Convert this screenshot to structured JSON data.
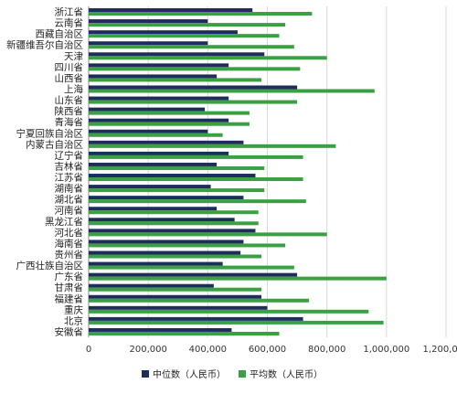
{
  "chart_data": {
    "type": "bar",
    "orientation": "horizontal",
    "categories": [
      "浙江省",
      "云南省",
      "西藏自治区",
      "新疆维吾尔自治区",
      "天津",
      "四川省",
      "山西省",
      "上海",
      "山东省",
      "陕西省",
      "青海省",
      "宁夏回族自治区",
      "内蒙古自治区",
      "辽宁省",
      "吉林省",
      "江苏省",
      "湖南省",
      "湖北省",
      "河南省",
      "黑龙江省",
      "河北省",
      "海南省",
      "贵州省",
      "广西壮族自治区",
      "广东省",
      "甘肃省",
      "福建省",
      "重庆",
      "北京",
      "安徽省"
    ],
    "series": [
      {
        "name": "中位数（人民币）",
        "color": "#1f2d5c",
        "values": [
          550000,
          400000,
          500000,
          400000,
          590000,
          470000,
          430000,
          700000,
          470000,
          390000,
          470000,
          400000,
          520000,
          470000,
          430000,
          560000,
          410000,
          520000,
          430000,
          490000,
          560000,
          520000,
          510000,
          450000,
          700000,
          420000,
          580000,
          600000,
          720000,
          480000
        ]
      },
      {
        "name": "平均数（人民币）",
        "color": "#3aa043",
        "values": [
          750000,
          660000,
          640000,
          690000,
          800000,
          710000,
          580000,
          960000,
          700000,
          540000,
          540000,
          450000,
          830000,
          720000,
          590000,
          720000,
          590000,
          730000,
          570000,
          570000,
          800000,
          660000,
          580000,
          690000,
          1000000,
          580000,
          740000,
          940000,
          990000,
          640000
        ]
      }
    ],
    "x_ticks": [
      "0",
      "200,000",
      "400,000",
      "600,000",
      "800,000",
      "1,000,000",
      "1,200,000"
    ],
    "xlim": [
      0,
      1200000
    ],
    "grid": true,
    "legend_position": "bottom"
  }
}
